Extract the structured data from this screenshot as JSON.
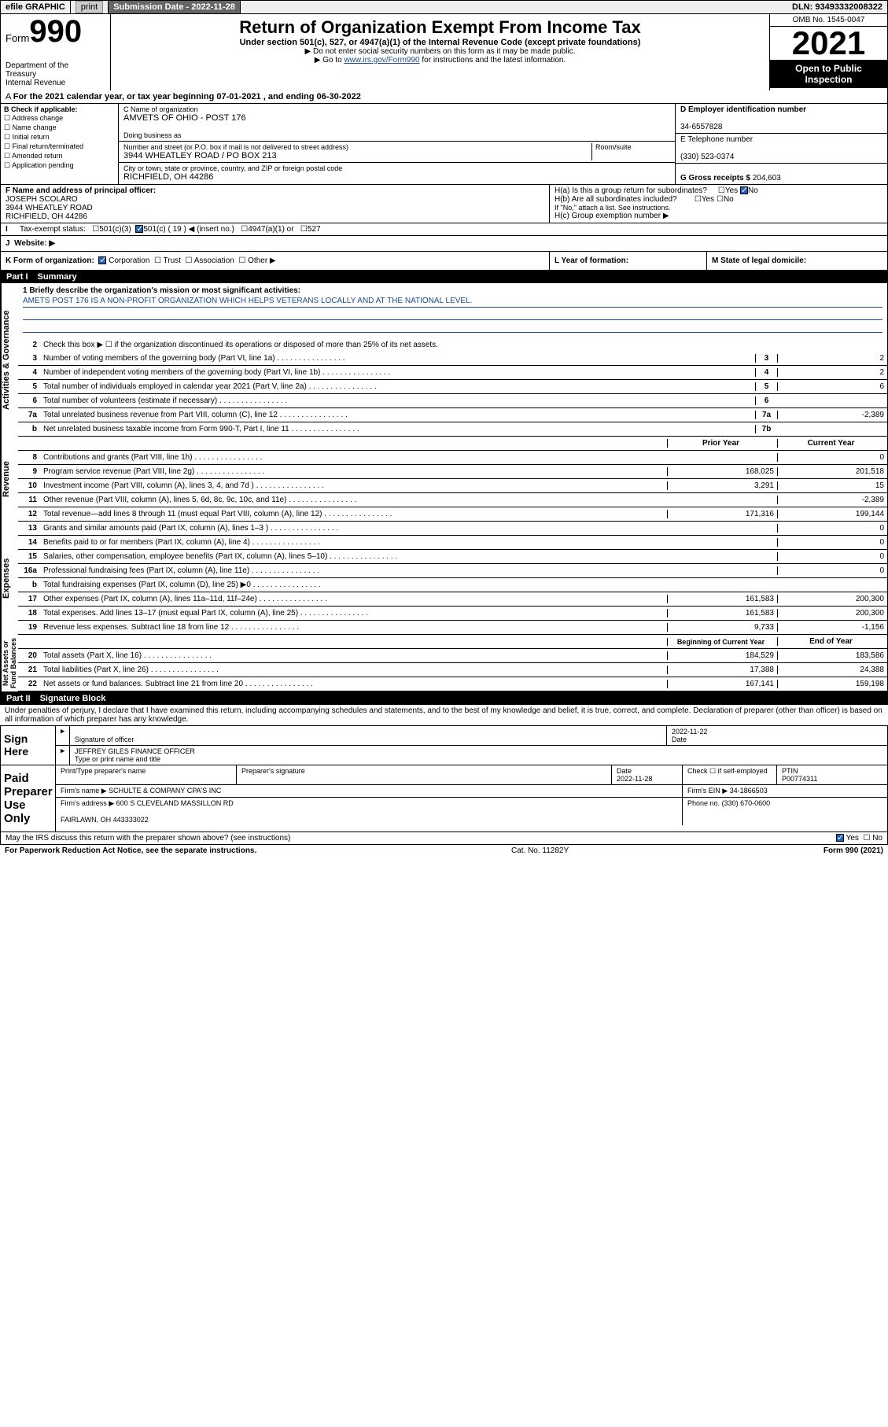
{
  "topbar": {
    "efile": "efile GRAPHIC",
    "print": "print",
    "subdate_label": "Submission Date - 2022-11-28",
    "dln": "DLN: 93493332008322"
  },
  "header": {
    "form_label": "Form",
    "form_num": "990",
    "dept": "Department of the Treasury\nInternal Revenue Service",
    "title": "Return of Organization Exempt From Income Tax",
    "sub": "Under section 501(c), 527, or 4947(a)(1) of the Internal Revenue Code (except private foundations)",
    "sub2a": "▶ Do not enter social security numbers on this form as it may be made public.",
    "sub2b_pre": "▶ Go to ",
    "sub2b_link": "www.irs.gov/Form990",
    "sub2b_post": " for instructions and the latest information.",
    "omb": "OMB No. 1545-0047",
    "year": "2021",
    "open_pub": "Open to Public Inspection"
  },
  "a_line": "For the 2021 calendar year, or tax year beginning 07-01-2021   , and ending 06-30-2022",
  "b": {
    "label": "B Check if applicable:",
    "items": [
      "Address change",
      "Name change",
      "Initial return",
      "Final return/terminated",
      "Amended return",
      "Application pending"
    ]
  },
  "c": {
    "name_lbl": "C Name of organization",
    "name": "AMVETS OF OHIO - POST 176",
    "dba_lbl": "Doing business as",
    "street_lbl": "Number and street (or P.O. box if mail is not delivered to street address)",
    "room_lbl": "Room/suite",
    "street": "3944 WHEATLEY ROAD / PO BOX 213",
    "city_lbl": "City or town, state or province, country, and ZIP or foreign postal code",
    "city": "RICHFIELD, OH  44286"
  },
  "d": {
    "lbl": "D Employer identification number",
    "val": "34-6557828"
  },
  "e": {
    "lbl": "E Telephone number",
    "val": "(330) 523-0374"
  },
  "g": {
    "lbl": "G Gross receipts $",
    "val": "204,603"
  },
  "f": {
    "lbl": "F  Name and address of principal officer:",
    "name": "JOSEPH SCOLARO",
    "addr1": "3944 WHEATLEY ROAD",
    "addr2": "RICHFIELD, OH  44286"
  },
  "h": {
    "a": "H(a)  Is this a group return for subordinates?",
    "b": "H(b)  Are all subordinates included?",
    "note": "If \"No,\" attach a list. See instructions.",
    "c": "H(c)  Group exemption number ▶",
    "yes": "Yes",
    "no": "No"
  },
  "i": {
    "lbl": "Tax-exempt status:",
    "opts": [
      "501(c)(3)",
      "501(c) ( 19 ) ◀ (insert no.)",
      "4947(a)(1) or",
      "527"
    ]
  },
  "j": {
    "lbl": "Website: ▶"
  },
  "k": {
    "lbl": "K Form of organization:",
    "opts": [
      "Corporation",
      "Trust",
      "Association",
      "Other ▶"
    ]
  },
  "l": {
    "lbl": "L Year of formation:"
  },
  "m": {
    "lbl": "M State of legal domicile:"
  },
  "part1": {
    "title": "Part I",
    "subtitle": "Summary",
    "briefly_lbl": "1  Briefly describe the organization's mission or most significant activities:",
    "briefly": "AMETS POST 176 IS A NON-PROFIT ORGANIZATION WHICH HELPS VETERANS LOCALLY AND AT THE NATIONAL LEVEL.",
    "line2": "Check this box ▶ ☐  if the organization discontinued its operations or disposed of more than 25% of its net assets.",
    "sections": {
      "gov": "Activities & Governance",
      "rev": "Revenue",
      "exp": "Expenses",
      "net": "Net Assets or Fund Balances"
    },
    "col_prior": "Prior Year",
    "col_current": "Current Year",
    "col_begin": "Beginning of Current Year",
    "col_end": "End of Year",
    "rows_single": [
      {
        "n": "3",
        "t": "Number of voting members of the governing body (Part VI, line 1a)",
        "box": "3",
        "v": "2"
      },
      {
        "n": "4",
        "t": "Number of independent voting members of the governing body (Part VI, line 1b)",
        "box": "4",
        "v": "2"
      },
      {
        "n": "5",
        "t": "Total number of individuals employed in calendar year 2021 (Part V, line 2a)",
        "box": "5",
        "v": "6"
      },
      {
        "n": "6",
        "t": "Total number of volunteers (estimate if necessary)",
        "box": "6",
        "v": ""
      },
      {
        "n": "7a",
        "t": "Total unrelated business revenue from Part VIII, column (C), line 12",
        "box": "7a",
        "v": "-2,389"
      },
      {
        "n": "b",
        "t": "Net unrelated business taxable income from Form 990-T, Part I, line 11",
        "box": "7b",
        "v": ""
      }
    ],
    "rows_rev": [
      {
        "n": "8",
        "t": "Contributions and grants (Part VIII, line 1h)",
        "p": "",
        "c": "0"
      },
      {
        "n": "9",
        "t": "Program service revenue (Part VIII, line 2g)",
        "p": "168,025",
        "c": "201,518"
      },
      {
        "n": "10",
        "t": "Investment income (Part VIII, column (A), lines 3, 4, and 7d )",
        "p": "3,291",
        "c": "15"
      },
      {
        "n": "11",
        "t": "Other revenue (Part VIII, column (A), lines 5, 6d, 8c, 9c, 10c, and 11e)",
        "p": "",
        "c": "-2,389"
      },
      {
        "n": "12",
        "t": "Total revenue—add lines 8 through 11 (must equal Part VIII, column (A), line 12)",
        "p": "171,316",
        "c": "199,144"
      }
    ],
    "rows_exp": [
      {
        "n": "13",
        "t": "Grants and similar amounts paid (Part IX, column (A), lines 1–3 )",
        "p": "",
        "c": "0"
      },
      {
        "n": "14",
        "t": "Benefits paid to or for members (Part IX, column (A), line 4)",
        "p": "",
        "c": "0"
      },
      {
        "n": "15",
        "t": "Salaries, other compensation, employee benefits (Part IX, column (A), lines 5–10)",
        "p": "",
        "c": "0"
      },
      {
        "n": "16a",
        "t": "Professional fundraising fees (Part IX, column (A), line 11e)",
        "p": "",
        "c": "0"
      },
      {
        "n": "b",
        "t": "Total fundraising expenses (Part IX, column (D), line 25) ▶0",
        "p": "shade",
        "c": "shade"
      },
      {
        "n": "17",
        "t": "Other expenses (Part IX, column (A), lines 11a–11d, 11f–24e)",
        "p": "161,583",
        "c": "200,300"
      },
      {
        "n": "18",
        "t": "Total expenses. Add lines 13–17 (must equal Part IX, column (A), line 25)",
        "p": "161,583",
        "c": "200,300"
      },
      {
        "n": "19",
        "t": "Revenue less expenses. Subtract line 18 from line 12",
        "p": "9,733",
        "c": "-1,156"
      }
    ],
    "rows_net": [
      {
        "n": "20",
        "t": "Total assets (Part X, line 16)",
        "p": "184,529",
        "c": "183,586"
      },
      {
        "n": "21",
        "t": "Total liabilities (Part X, line 26)",
        "p": "17,388",
        "c": "24,388"
      },
      {
        "n": "22",
        "t": "Net assets or fund balances. Subtract line 21 from line 20",
        "p": "167,141",
        "c": "159,198"
      }
    ]
  },
  "part2": {
    "title": "Part II",
    "subtitle": "Signature Block",
    "disclaimer": "Under penalties of perjury, I declare that I have examined this return, including accompanying schedules and statements, and to the best of my knowledge and belief, it is true, correct, and complete. Declaration of preparer (other than officer) is based on all information of which preparer has any knowledge.",
    "sign_here": "Sign Here",
    "sig_officer": "Signature of officer",
    "date": "Date",
    "sig_date": "2022-11-22",
    "name_title_lbl": "Type or print name and title",
    "name_title": "JEFFREY GILES  FINANCE OFFICER",
    "paid": "Paid Preparer Use Only",
    "prep_name_lbl": "Print/Type preparer's name",
    "prep_sig_lbl": "Preparer's signature",
    "prep_date_lbl": "Date",
    "prep_date": "2022-11-28",
    "check_self": "Check ☐ if self-employed",
    "ptin_lbl": "PTIN",
    "ptin": "P00774311",
    "firm_name_lbl": "Firm's name    ▶",
    "firm_name": "SCHULTE & COMPANY CPA'S INC",
    "firm_ein_lbl": "Firm's EIN ▶",
    "firm_ein": "34-1866503",
    "firm_addr_lbl": "Firm's address ▶",
    "firm_addr1": "600 S CLEVELAND MASSILLON RD",
    "firm_addr2": "FAIRLAWN, OH  443333022",
    "phone_lbl": "Phone no.",
    "phone": "(330) 670-0600",
    "may_irs": "May the IRS discuss this return with the preparer shown above? (see instructions)",
    "yes": "Yes",
    "no": "No"
  },
  "footer": {
    "left": "For Paperwork Reduction Act Notice, see the separate instructions.",
    "mid": "Cat. No. 11282Y",
    "right": "Form 990 (2021)"
  }
}
